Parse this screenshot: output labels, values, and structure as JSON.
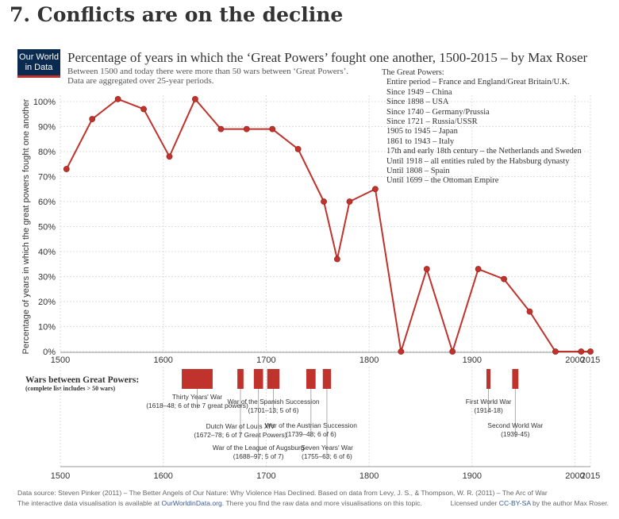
{
  "heading": "7. Conflicts are on the decline",
  "logo": {
    "line1": "Our World",
    "line2": "in Data"
  },
  "title": "Percentage of years in which the ‘Great Powers’ fought one another, 1500-2015 – by Max Roser",
  "subtitle": [
    "Between 1500 and today there were more than 50 wars between ‘Great Powers’.",
    "Data are aggregated over 25-year periods."
  ],
  "great_powers": {
    "header": "The Great Powers:",
    "items": [
      "Entire period – France and England/Great Britain/U.K.",
      "Since 1949 – China",
      "Since 1898 – USA",
      "Since 1740 – Germany/Prussia",
      "Since 1721 – Russia/USSR",
      "1905 to 1945 – Japan",
      "1861 to 1943 – Italy",
      "17th and early 18th century – the Netherlands and Sweden",
      "Until 1918 – all entities ruled by the Habsburg dynasty",
      "Until 1808 – Spain",
      "Until 1699 – the Ottoman Empire"
    ]
  },
  "chart_data": {
    "type": "line",
    "ylabel": "Percentage of years in which the great powers fought one another",
    "xlim": [
      1500,
      2015
    ],
    "ylim": [
      0,
      100
    ],
    "x_ticks": [
      1500,
      1600,
      1700,
      1800,
      1900,
      2000,
      2015
    ],
    "y_ticks": [
      "0%",
      "10%",
      "20%",
      "30%",
      "40%",
      "50%",
      "60%",
      "70%",
      "80%",
      "90%",
      "100%"
    ],
    "series": [
      {
        "color": "#c0322c",
        "x": [
          1506,
          1531,
          1556,
          1581,
          1606,
          1631,
          1656,
          1681,
          1706,
          1731,
          1756,
          1769,
          1781,
          1806,
          1831,
          1856,
          1881,
          1906,
          1931,
          1956,
          1981,
          2006,
          2015
        ],
        "y": [
          73,
          93,
          101,
          97,
          78,
          101,
          89,
          89,
          89,
          81,
          60,
          37,
          60,
          65,
          0,
          33,
          0,
          33,
          29,
          16,
          0,
          0,
          0
        ]
      }
    ]
  },
  "wars_panel": {
    "title": "Wars between Great Powers:",
    "subtitle": "(complete list includes > 50 wars)",
    "bar_color": "#c0322c",
    "wars": [
      {
        "start": 1618,
        "end": 1648,
        "name": "Thirty Years' War",
        "detail": "(1618–48; 6 of the 7 great powers)"
      },
      {
        "start": 1672,
        "end": 1678,
        "name": "Dutch War of Louis XIV",
        "detail": "(1672–78; 6 of 7 Great Powers)"
      },
      {
        "start": 1688,
        "end": 1697,
        "name": "War of the League of Augsburg",
        "detail": "(1688–97; 5 of 7)"
      },
      {
        "start": 1701,
        "end": 1713,
        "name": "War of the Spanish Succession",
        "detail": "(1701–13; 5 of 6)"
      },
      {
        "start": 1739,
        "end": 1748,
        "name": "War of the Austrian Succession",
        "detail": "(1739–48; 6 of 6)"
      },
      {
        "start": 1755,
        "end": 1763,
        "name": "Seven Years' War",
        "detail": "(1755–63; 6 of 6)"
      },
      {
        "start": 1914,
        "end": 1918,
        "name": "First World War",
        "detail": "(1914-18)"
      },
      {
        "start": 1939,
        "end": 1945,
        "name": "Second World War",
        "detail": "(1939-45)"
      }
    ]
  },
  "footer": {
    "source": "Data source: Steven Pinker (2011) – The Better Angels of Our Nature: Why Violence Has Declined. Based on data from Levy, J. S., & Thompson, W. R. (2011) – The Arc of War",
    "interactive_prefix": "The interactive data visualisation is available at ",
    "interactive_link": "OurWorldinData.org",
    "interactive_suffix": ". There you find the raw data and more visualisations on this topic.",
    "license_prefix": "Licensed under ",
    "license_link": "CC-BY-SA",
    "license_suffix": " by the author Max Roser."
  }
}
